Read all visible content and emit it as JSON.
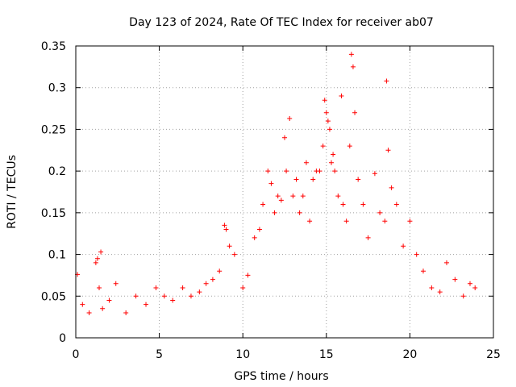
{
  "chart_data": {
    "type": "scatter",
    "title": "Day 123 of 2024, Rate Of TEC Index for receiver ab07",
    "xlabel": "GPS time / hours",
    "ylabel": "ROTI / TECUs",
    "xlim": [
      0,
      25
    ],
    "ylim": [
      0,
      0.35
    ],
    "xticks": [
      "0",
      "5",
      "10",
      "15",
      "20",
      "25"
    ],
    "yticks": [
      "0",
      "0.05",
      "0.1",
      "0.15",
      "0.2",
      "0.25",
      "0.3",
      "0.35"
    ],
    "grid": true,
    "marker": "+",
    "color": "#ff0000",
    "series": [
      {
        "x": [
          0.1,
          0.4,
          0.8,
          1.2,
          1.3,
          1.4,
          1.5,
          1.6,
          2.0,
          2.4,
          3.0,
          3.6,
          4.2,
          4.8,
          5.3,
          5.8,
          6.4,
          6.9,
          7.4,
          7.8,
          8.2,
          8.6,
          8.9,
          9.0,
          9.2,
          9.5,
          10.0,
          10.3,
          10.7,
          11.0,
          11.2,
          11.5,
          11.7,
          11.9,
          12.1,
          12.3,
          12.5,
          12.6,
          12.8,
          13.0,
          13.2,
          13.4,
          13.6,
          13.8,
          14.0,
          14.2,
          14.4,
          14.6,
          14.8,
          14.9,
          15.0,
          15.1,
          15.2,
          15.3,
          15.4,
          15.5,
          15.7,
          15.9,
          16.0,
          16.2,
          16.4,
          16.5,
          16.6,
          16.7,
          16.9,
          17.2,
          17.5,
          17.9,
          18.2,
          18.5,
          18.6,
          18.7,
          18.9,
          19.2,
          19.6,
          20.0,
          20.4,
          20.8,
          21.3,
          21.8,
          22.2,
          22.7,
          23.2,
          23.6,
          23.9
        ],
        "y": [
          0.076,
          0.04,
          0.03,
          0.09,
          0.095,
          0.06,
          0.103,
          0.035,
          0.045,
          0.065,
          0.03,
          0.05,
          0.04,
          0.06,
          0.05,
          0.045,
          0.06,
          0.05,
          0.055,
          0.065,
          0.07,
          0.08,
          0.135,
          0.13,
          0.11,
          0.1,
          0.06,
          0.075,
          0.12,
          0.13,
          0.16,
          0.2,
          0.185,
          0.15,
          0.17,
          0.165,
          0.24,
          0.2,
          0.263,
          0.17,
          0.19,
          0.15,
          0.17,
          0.21,
          0.14,
          0.19,
          0.2,
          0.2,
          0.23,
          0.285,
          0.27,
          0.26,
          0.25,
          0.21,
          0.22,
          0.2,
          0.17,
          0.29,
          0.16,
          0.14,
          0.23,
          0.34,
          0.325,
          0.27,
          0.19,
          0.16,
          0.12,
          0.197,
          0.15,
          0.14,
          0.308,
          0.225,
          0.18,
          0.16,
          0.11,
          0.14,
          0.1,
          0.08,
          0.06,
          0.055,
          0.09,
          0.07,
          0.05,
          0.065,
          0.06
        ]
      }
    ]
  }
}
